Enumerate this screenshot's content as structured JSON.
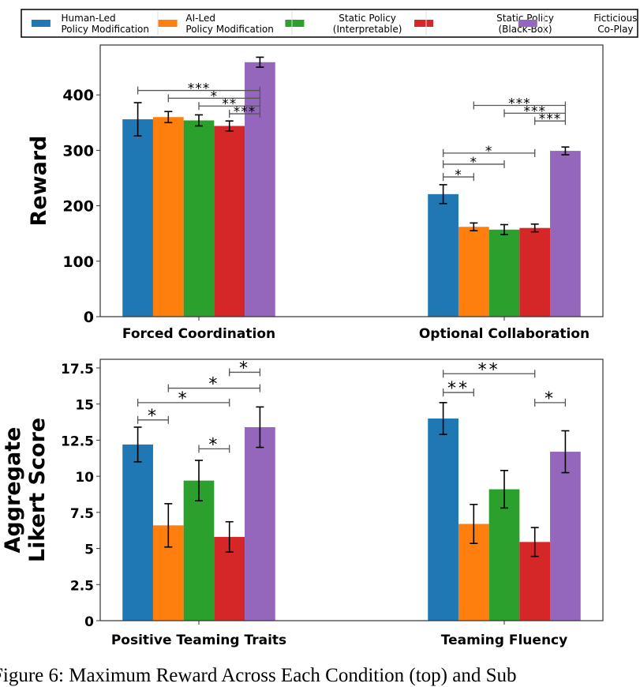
{
  "legend": {
    "placement": "top",
    "entries": [
      {
        "label1": "Human-Led",
        "label2": "Policy Modification",
        "color": "#1f77b4"
      },
      {
        "label1": "AI-Led",
        "label2": "Policy Modification",
        "color": "#ff7f0e"
      },
      {
        "label1": "Static Policy",
        "label2": "(Interpretable)",
        "color": "#2ca02c"
      },
      {
        "label1": "Static Policy",
        "label2": "(Black-Box)",
        "color": "#d62728"
      },
      {
        "label1": "Ficticious",
        "label2": "Co-Play",
        "color": "#9467bd"
      }
    ]
  },
  "chart_data": [
    {
      "type": "bar",
      "ylabel": "Reward",
      "ylim": [
        0,
        490
      ],
      "yticks": [
        0,
        100,
        200,
        300,
        400
      ],
      "categories": [
        "Forced Coordination",
        "Optional Collaboration"
      ],
      "series": [
        {
          "name": "Human-Led Policy Modification",
          "values": [
            356,
            221
          ],
          "errors": [
            30,
            17
          ]
        },
        {
          "name": "AI-Led Policy Modification",
          "values": [
            360,
            162
          ],
          "errors": [
            10,
            7
          ]
        },
        {
          "name": "Static Policy (Interpretable)",
          "values": [
            354,
            157
          ],
          "errors": [
            10,
            9
          ]
        },
        {
          "name": "Static Policy (Black-Box)",
          "values": [
            344,
            160
          ],
          "errors": [
            9,
            7
          ]
        },
        {
          "name": "Ficticious Co-Play",
          "values": [
            459,
            299
          ],
          "errors": [
            9,
            7
          ]
        }
      ],
      "significance": [
        {
          "category": 0,
          "from": 0,
          "to": 4,
          "y": 408,
          "label": "***"
        },
        {
          "category": 0,
          "from": 1,
          "to": 4,
          "y": 394,
          "label": "*"
        },
        {
          "category": 0,
          "from": 2,
          "to": 4,
          "y": 380,
          "label": "**"
        },
        {
          "category": 0,
          "from": 3,
          "to": 4,
          "y": 366,
          "label": "***"
        },
        {
          "category": 1,
          "from": 1,
          "to": 4,
          "y": 381,
          "label": "***"
        },
        {
          "category": 1,
          "from": 2,
          "to": 4,
          "y": 367,
          "label": "***"
        },
        {
          "category": 1,
          "from": 3,
          "to": 4,
          "y": 353,
          "label": "***"
        },
        {
          "category": 1,
          "from": 0,
          "to": 3,
          "y": 295,
          "label": "*"
        },
        {
          "category": 1,
          "from": 0,
          "to": 2,
          "y": 275,
          "label": "*"
        },
        {
          "category": 1,
          "from": 0,
          "to": 1,
          "y": 252,
          "label": "*"
        }
      ]
    },
    {
      "type": "bar",
      "ylabel": "Aggregate Likert Score",
      "ylabel_lines": [
        "Aggregate",
        "Likert Score"
      ],
      "ylim": [
        0,
        18.1
      ],
      "yticks": [
        0,
        2.5,
        5,
        7.5,
        10,
        12.5,
        15,
        17.5
      ],
      "ytick_labels": [
        "0",
        "2.5",
        "5",
        "7.5",
        "10",
        "12.5",
        "15",
        "17.5"
      ],
      "categories": [
        "Positive Teaming Traits",
        "Teaming Fluency"
      ],
      "series": [
        {
          "name": "Human-Led Policy Modification",
          "values": [
            12.2,
            14.0
          ],
          "errors": [
            1.2,
            1.1
          ]
        },
        {
          "name": "AI-Led Policy Modification",
          "values": [
            6.6,
            6.7
          ],
          "errors": [
            1.5,
            1.35
          ]
        },
        {
          "name": "Static Policy (Interpretable)",
          "values": [
            9.7,
            9.1
          ],
          "errors": [
            1.4,
            1.3
          ]
        },
        {
          "name": "Static Policy (Black-Box)",
          "values": [
            5.8,
            5.45
          ],
          "errors": [
            1.05,
            1.0
          ]
        },
        {
          "name": "Ficticious Co-Play",
          "values": [
            13.4,
            11.7
          ],
          "errors": [
            1.4,
            1.45
          ]
        }
      ],
      "significance": [
        {
          "category": 0,
          "from": 3,
          "to": 4,
          "y": 17.2,
          "label": "*"
        },
        {
          "category": 0,
          "from": 1,
          "to": 4,
          "y": 16.1,
          "label": "*"
        },
        {
          "category": 0,
          "from": 0,
          "to": 3,
          "y": 15.1,
          "label": "*"
        },
        {
          "category": 0,
          "from": 0,
          "to": 1,
          "y": 13.9,
          "label": "*"
        },
        {
          "category": 0,
          "from": 2,
          "to": 3,
          "y": 11.9,
          "label": "*"
        },
        {
          "category": 1,
          "from": 0,
          "to": 3,
          "y": 17.1,
          "label": "**"
        },
        {
          "category": 1,
          "from": 0,
          "to": 1,
          "y": 15.8,
          "label": "**"
        },
        {
          "category": 1,
          "from": 3,
          "to": 4,
          "y": 15.1,
          "label": "*"
        }
      ]
    }
  ],
  "caption": "Figure 6: Maximum Reward Across Each Condition (top) and Sub"
}
